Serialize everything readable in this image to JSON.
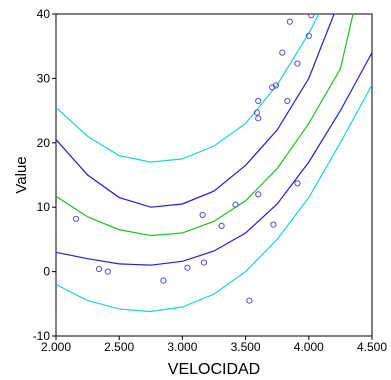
{
  "chart_data": {
    "type": "scatter",
    "xlabel": "VELOCIDAD",
    "ylabel": "Value",
    "xlim": [
      2,
      4.5
    ],
    "ylim": [
      -10,
      40
    ],
    "xticks": [
      {
        "value": 2,
        "label": "2.000"
      },
      {
        "value": 2.5,
        "label": "2.500"
      },
      {
        "value": 3,
        "label": "3.000"
      },
      {
        "value": 3.5,
        "label": "3.500"
      },
      {
        "value": 4,
        "label": "4.000"
      },
      {
        "value": 4.5,
        "label": "4.500"
      }
    ],
    "yticks": [
      -10,
      0,
      10,
      20,
      30,
      40
    ],
    "series": [
      {
        "type": "line",
        "color": "#20d0d0",
        "x": [
          2,
          2.25,
          2.5,
          2.75,
          3,
          3.25,
          3.5,
          3.75,
          4,
          4.08
        ],
        "values": [
          25.5,
          21,
          18,
          17,
          17.5,
          19.5,
          23,
          29,
          37,
          40
        ]
      },
      {
        "type": "line",
        "color": "#2020d0",
        "x": [
          2,
          2.25,
          2.5,
          2.75,
          3,
          3.25,
          3.5,
          3.75,
          4,
          4.2
        ],
        "values": [
          20.5,
          15,
          11.5,
          10,
          10.5,
          12.5,
          16.5,
          22,
          30,
          40
        ]
      },
      {
        "type": "line",
        "color": "#20c020",
        "x": [
          2,
          2.25,
          2.5,
          2.75,
          3,
          3.25,
          3.5,
          3.75,
          4,
          4.25,
          4.35
        ],
        "values": [
          11.7,
          8.5,
          6.5,
          5.6,
          6,
          7.8,
          11,
          16,
          23,
          31.5,
          40
        ]
      },
      {
        "type": "line",
        "color": "#2020d0",
        "x": [
          2,
          2.25,
          2.5,
          2.75,
          3,
          3.25,
          3.5,
          3.75,
          4,
          4.25,
          4.5
        ],
        "values": [
          3,
          2,
          1.2,
          1,
          1.6,
          3.2,
          6,
          10.5,
          17,
          25,
          34
        ]
      },
      {
        "type": "line",
        "color": "#20d0d0",
        "x": [
          2,
          2.25,
          2.5,
          2.75,
          3,
          3.25,
          3.5,
          3.75,
          4,
          4.25,
          4.5
        ],
        "values": [
          -2,
          -4.5,
          -5.8,
          -6.2,
          -5.5,
          -3.5,
          0,
          5,
          11.5,
          20,
          29
        ]
      },
      {
        "type": "scatter",
        "color": "#5050c8",
        "x": [
          2.158,
          2.34,
          2.41,
          2.85,
          3.04,
          3.16,
          3.17,
          3.31,
          3.42,
          3.53,
          3.59,
          3.6,
          3.6,
          3.6,
          3.72,
          3.71,
          3.74,
          3.79,
          3.83,
          3.85,
          3.91,
          3.91,
          4.0,
          4.02
        ],
        "values": [
          8.2,
          0.4,
          0,
          -1.4,
          0.6,
          8.8,
          1.4,
          7.1,
          10.4,
          -4.5,
          24.7,
          23.8,
          26.5,
          12,
          7.3,
          28.6,
          28.9,
          34,
          26.5,
          38.8,
          32.3,
          13.7,
          36.6,
          39.8
        ]
      }
    ]
  }
}
